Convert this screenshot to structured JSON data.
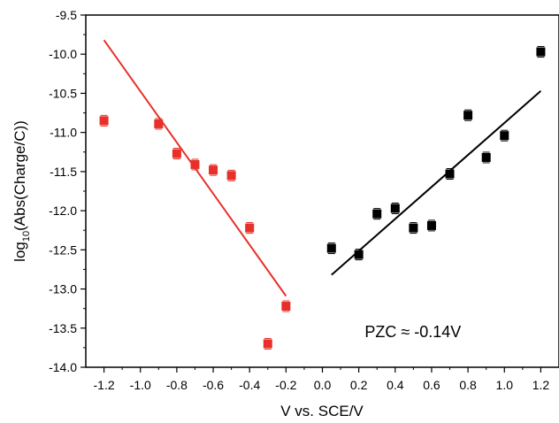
{
  "chart_data": {
    "type": "scatter",
    "title": "",
    "xlabel": "V vs. SCE/V",
    "ylabel": {
      "prefix": "log",
      "sub": "10",
      "suffix": "(Abs(Charge/C))"
    },
    "xlim": [
      -1.3,
      1.3
    ],
    "ylim": [
      -14.0,
      -9.5
    ],
    "xticks": [
      -1.2,
      -1.0,
      -0.8,
      -0.6,
      -0.4,
      -0.2,
      0.0,
      0.2,
      0.4,
      0.6,
      0.8,
      1.0,
      1.2
    ],
    "xtick_labels": [
      "-1.2",
      "-1.0",
      "-0.8",
      "-0.6",
      "-0.4",
      "-0.2",
      "0.0",
      "0.2",
      "0.4",
      "0.6",
      "0.8",
      "1.0",
      "1.2"
    ],
    "yticks": [
      -9.5,
      -10.0,
      -10.5,
      -11.0,
      -11.5,
      -12.0,
      -12.5,
      -13.0,
      -13.5,
      -14.0
    ],
    "ytick_labels": [
      "-9.5",
      "-10.0",
      "-10.5",
      "-11.0",
      "-11.5",
      "-12.0",
      "-12.5",
      "-13.0",
      "-13.5",
      "-14.0"
    ],
    "grid": false,
    "series": [
      {
        "color": "#e8302a",
        "x": [
          -1.2,
          -0.9,
          -0.8,
          -0.7,
          -0.6,
          -0.5,
          -0.4,
          -0.3,
          -0.2
        ],
        "y": [
          -10.85,
          -10.89,
          -11.27,
          -11.41,
          -11.48,
          -11.55,
          -12.22,
          -13.7,
          -13.22
        ],
        "fit": {
          "x": [
            -1.2,
            -0.2
          ],
          "y": [
            -9.82,
            -13.09
          ]
        }
      },
      {
        "color": "#000000",
        "x": [
          0.05,
          0.2,
          0.3,
          0.4,
          0.5,
          0.6,
          0.7,
          0.8,
          0.9,
          1.0,
          1.2
        ],
        "y": [
          -12.48,
          -12.56,
          -12.04,
          -11.97,
          -12.22,
          -12.19,
          -11.53,
          -10.78,
          -11.32,
          -11.04,
          -9.97
        ],
        "fit": {
          "x": [
            0.05,
            1.2
          ],
          "y": [
            -12.82,
            -10.47
          ]
        }
      }
    ],
    "annotation": {
      "text": "PZC ≈ -0.14V",
      "x": 0.5,
      "y": -13.55
    }
  }
}
